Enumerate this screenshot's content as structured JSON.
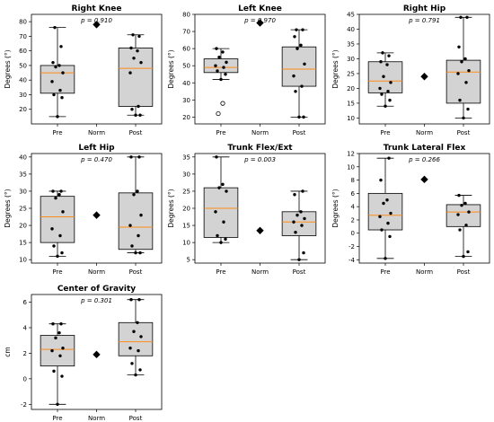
{
  "chart_data": [
    {
      "type": "box",
      "title": "Right Knee",
      "ylabel": "Degrees (°)",
      "pvalue": "p = 0.910",
      "ylim": [
        10,
        85
      ],
      "yticks": [
        20,
        30,
        40,
        50,
        60,
        70,
        80
      ],
      "categories": [
        "Pre",
        "Norm",
        "Post"
      ],
      "pre": {
        "whislo": 15,
        "q1": 31,
        "med": 45,
        "q3": 50,
        "whishi": 76,
        "points": [
          15,
          28,
          30,
          33,
          39,
          45,
          49,
          50,
          52,
          63,
          76
        ],
        "outliers": []
      },
      "norm": 78,
      "post": {
        "whislo": 16,
        "q1": 22,
        "med": 48,
        "q3": 62,
        "whishi": 71,
        "points": [
          16,
          16,
          20,
          22,
          45,
          52,
          55,
          60,
          62,
          70,
          71
        ],
        "outliers": []
      }
    },
    {
      "type": "box",
      "title": "Left Knee",
      "ylabel": "Degrees (°)",
      "pvalue": "p = 0.970",
      "ylim": [
        16,
        80
      ],
      "yticks": [
        20,
        30,
        40,
        50,
        60,
        70,
        80
      ],
      "categories": [
        "Pre",
        "Norm",
        "Post"
      ],
      "pre": {
        "whislo": 42,
        "q1": 46,
        "med": 49,
        "q3": 54,
        "whishi": 60,
        "points": [
          42,
          45,
          47,
          49,
          50,
          52,
          55,
          58,
          60
        ],
        "outliers": [
          22,
          28
        ]
      },
      "norm": 75,
      "post": {
        "whislo": 20,
        "q1": 38,
        "med": 48,
        "q3": 61,
        "whishi": 71,
        "points": [
          20,
          20,
          35,
          38,
          44,
          51,
          60,
          62,
          67,
          71,
          71
        ],
        "outliers": []
      }
    },
    {
      "type": "box",
      "title": "Right Hip",
      "ylabel": "Degrees (°)",
      "pvalue": "p = 0.791",
      "ylim": [
        8,
        45
      ],
      "yticks": [
        10,
        15,
        20,
        25,
        30,
        35,
        40,
        45
      ],
      "categories": [
        "Pre",
        "Norm",
        "Post"
      ],
      "pre": {
        "whislo": 14,
        "q1": 18.5,
        "med": 22.5,
        "q3": 29,
        "whishi": 32,
        "points": [
          14,
          16,
          18,
          19,
          20,
          22,
          24,
          28,
          29,
          31,
          32
        ],
        "outliers": []
      },
      "norm": 24,
      "post": {
        "whislo": 10,
        "q1": 15,
        "med": 25.5,
        "q3": 29.5,
        "whishi": 44,
        "points": [
          10,
          13,
          16,
          22,
          25,
          26,
          29,
          30,
          34,
          44,
          44
        ],
        "outliers": []
      }
    },
    {
      "type": "box",
      "title": "Left Hip",
      "ylabel": "Degrees (°)",
      "pvalue": "p = 0.470",
      "ylim": [
        9,
        41
      ],
      "yticks": [
        10,
        15,
        20,
        25,
        30,
        35,
        40
      ],
      "categories": [
        "Pre",
        "Norm",
        "Post"
      ],
      "pre": {
        "whislo": 11,
        "q1": 15,
        "med": 22.5,
        "q3": 28.5,
        "whishi": 30,
        "points": [
          11,
          12,
          14,
          17,
          19,
          24,
          28,
          29,
          30,
          30
        ],
        "outliers": []
      },
      "norm": 23,
      "post": {
        "whislo": 12,
        "q1": 13,
        "med": 19.5,
        "q3": 29.5,
        "whishi": 40,
        "points": [
          12,
          12,
          14,
          17,
          20,
          23,
          29,
          30,
          40,
          40
        ],
        "outliers": []
      }
    },
    {
      "type": "box",
      "title": "Trunk Flex/Ext",
      "ylabel": "Degrees (°)",
      "pvalue": "p = 0.003",
      "ylim": [
        4,
        36
      ],
      "yticks": [
        5,
        10,
        15,
        20,
        25,
        30,
        35
      ],
      "categories": [
        "Pre",
        "Norm",
        "Post"
      ],
      "pre": {
        "whislo": 10,
        "q1": 11.5,
        "med": 20,
        "q3": 26,
        "whishi": 35,
        "points": [
          10,
          11,
          12,
          16,
          19,
          25,
          26,
          27,
          35
        ],
        "outliers": []
      },
      "norm": 13.5,
      "post": {
        "whislo": 5,
        "q1": 12,
        "med": 16,
        "q3": 19,
        "whishi": 25,
        "points": [
          5,
          7,
          13,
          15,
          16,
          17,
          18,
          19,
          24,
          25
        ],
        "outliers": []
      }
    },
    {
      "type": "box",
      "title": "Trunk Lateral Flex",
      "ylabel": "Degrees (°)",
      "pvalue": "p = 0.266",
      "ylim": [
        -4.5,
        12
      ],
      "yticks": [
        -4,
        -2,
        0,
        2,
        4,
        6,
        8,
        10,
        12
      ],
      "categories": [
        "Pre",
        "Norm",
        "Post"
      ],
      "pre": {
        "whislo": -3.8,
        "q1": 0.5,
        "med": 2.7,
        "q3": 6,
        "whishi": 11.3,
        "points": [
          -3.8,
          -0.5,
          0.5,
          1.5,
          2.5,
          3,
          4.5,
          5,
          8,
          11.3
        ],
        "outliers": []
      },
      "norm": 8.1,
      "post": {
        "whislo": -3.5,
        "q1": 1,
        "med": 3.2,
        "q3": 4.3,
        "whishi": 5.7,
        "points": [
          -3.5,
          -2.8,
          0.5,
          1.2,
          2.8,
          3.2,
          4.2,
          4.5,
          5.7
        ],
        "outliers": []
      }
    },
    {
      "type": "box",
      "title": "Center of Gravity",
      "ylabel": "cm",
      "pvalue": "p = 0.301",
      "ylim": [
        -2.4,
        6.6
      ],
      "yticks": [
        -2,
        0,
        2,
        4,
        6
      ],
      "categories": [
        "Pre",
        "Norm",
        "Post"
      ],
      "pre": {
        "whislo": -2,
        "q1": 1,
        "med": 2.3,
        "q3": 3.4,
        "whishi": 4.3,
        "points": [
          -2,
          0.2,
          0.6,
          1.8,
          2.2,
          2.4,
          3.2,
          3.6,
          4.3,
          4.3
        ],
        "outliers": []
      },
      "norm": 1.9,
      "post": {
        "whislo": 0.3,
        "q1": 1.8,
        "med": 2.9,
        "q3": 4.4,
        "whishi": 6.2,
        "points": [
          0.3,
          0.7,
          1.2,
          2.2,
          2.4,
          3.3,
          3.7,
          4.4,
          6.2,
          6.2
        ],
        "outliers": []
      }
    }
  ]
}
